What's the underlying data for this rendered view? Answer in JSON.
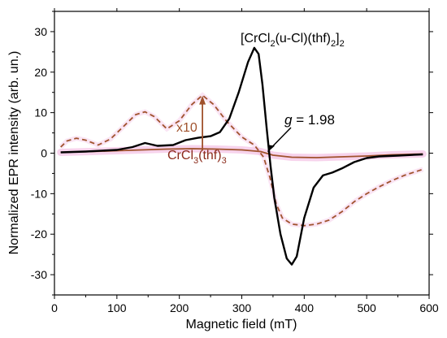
{
  "chart_data": {
    "type": "line",
    "xlabel": "Magnetic field (mT)",
    "ylabel": "Normalized EPR intensity (arb. un.)",
    "xlim": [
      0,
      600
    ],
    "ylim": [
      -35,
      35
    ],
    "xticks": [
      0,
      100,
      200,
      300,
      400,
      500,
      600
    ],
    "yticks": [
      -30,
      -20,
      -10,
      0,
      10,
      20,
      30
    ],
    "grid": false,
    "legend": "none",
    "series": [
      {
        "name": "[CrCl2(u-Cl)(thf)2]2",
        "color": "#000000",
        "style": "solid",
        "points": [
          [
            10,
            0.2
          ],
          [
            50,
            0.4
          ],
          [
            100,
            0.8
          ],
          [
            125,
            1.5
          ],
          [
            145,
            2.5
          ],
          [
            165,
            1.8
          ],
          [
            190,
            2.0
          ],
          [
            210,
            3.2
          ],
          [
            230,
            3.8
          ],
          [
            250,
            4.2
          ],
          [
            265,
            5.2
          ],
          [
            280,
            8.5
          ],
          [
            295,
            15.0
          ],
          [
            310,
            22.5
          ],
          [
            320,
            26.0
          ],
          [
            327,
            24.5
          ],
          [
            333,
            17.0
          ],
          [
            340,
            6.0
          ],
          [
            346,
            -3.0
          ],
          [
            352,
            -11.0
          ],
          [
            362,
            -20.0
          ],
          [
            372,
            -26.0
          ],
          [
            380,
            -27.5
          ],
          [
            388,
            -25.5
          ],
          [
            400,
            -16.0
          ],
          [
            415,
            -8.5
          ],
          [
            430,
            -5.5
          ],
          [
            445,
            -4.8
          ],
          [
            460,
            -3.8
          ],
          [
            480,
            -2.2
          ],
          [
            500,
            -1.2
          ],
          [
            520,
            -0.8
          ],
          [
            550,
            -0.6
          ],
          [
            590,
            -0.3
          ]
        ]
      },
      {
        "name": "CrCl3(thf)3",
        "color": "#a0522d",
        "style": "solid",
        "points": [
          [
            10,
            0.2
          ],
          [
            60,
            0.4
          ],
          [
            100,
            0.6
          ],
          [
            140,
            0.8
          ],
          [
            180,
            1.0
          ],
          [
            220,
            1.1
          ],
          [
            260,
            1.0
          ],
          [
            300,
            0.8
          ],
          [
            330,
            0.4
          ],
          [
            350,
            -0.5
          ],
          [
            380,
            -1.0
          ],
          [
            420,
            -1.1
          ],
          [
            460,
            -0.9
          ],
          [
            500,
            -0.7
          ],
          [
            540,
            -0.4
          ],
          [
            590,
            -0.2
          ]
        ]
      },
      {
        "name": "CrCl3(thf)3 x10",
        "color": "#a0522d",
        "style": "dashed",
        "points": [
          [
            10,
            1.5
          ],
          [
            20,
            3.0
          ],
          [
            35,
            3.7
          ],
          [
            50,
            3.2
          ],
          [
            70,
            2.0
          ],
          [
            90,
            3.5
          ],
          [
            110,
            6.5
          ],
          [
            130,
            9.5
          ],
          [
            145,
            10.2
          ],
          [
            160,
            9.0
          ],
          [
            180,
            6.0
          ],
          [
            200,
            8.0
          ],
          [
            220,
            12.0
          ],
          [
            237,
            14.3
          ],
          [
            255,
            12.0
          ],
          [
            275,
            8.0
          ],
          [
            300,
            4.0
          ],
          [
            320,
            2.0
          ],
          [
            335,
            -1.0
          ],
          [
            345,
            -6.0
          ],
          [
            355,
            -12.5
          ],
          [
            365,
            -16.0
          ],
          [
            380,
            -17.5
          ],
          [
            400,
            -17.9
          ],
          [
            420,
            -17.5
          ],
          [
            440,
            -16.5
          ],
          [
            460,
            -14.5
          ],
          [
            480,
            -12.0
          ],
          [
            500,
            -10.0
          ],
          [
            520,
            -8.3
          ],
          [
            540,
            -6.8
          ],
          [
            560,
            -5.5
          ],
          [
            590,
            -4.0
          ]
        ]
      }
    ],
    "annotations": {
      "label_dimer": "[CrCl",
      "label_dimer_sub1": "2",
      "label_dimer_mid": "(u-Cl)(thf)",
      "label_dimer_sub2": "2",
      "label_dimer_end": "]",
      "label_dimer_sub3": "2",
      "label_mono": "CrCl",
      "label_mono_sub1": "3",
      "label_mono_mid": "(thf)",
      "label_mono_sub2": "3",
      "label_x10": "x10",
      "label_g_symbol": "g",
      "label_g_value": " = 1.98",
      "g_field_mT": 345,
      "x10_arrow_x_mT": 237
    }
  }
}
